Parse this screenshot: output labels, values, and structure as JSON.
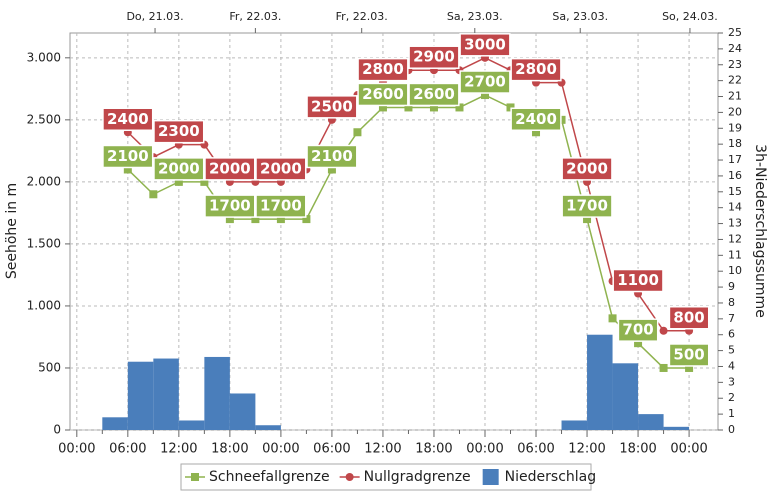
{
  "chart_data": {
    "type": "line",
    "ylabel": "Seehöhe in m",
    "y2label": "3h-Niederschlagssumme",
    "x": [
      6,
      9,
      12,
      15,
      18,
      21,
      24,
      27,
      30,
      33,
      36,
      39,
      42,
      45,
      48,
      51,
      54,
      57,
      60,
      63,
      66,
      69,
      72
    ],
    "series": [
      {
        "name": "Schneefallgrenze",
        "color": "#8fb34f",
        "marker": "square",
        "values": [
          2100,
          1900,
          2000,
          2000,
          1700,
          1700,
          1700,
          1700,
          2100,
          2400,
          2600,
          2600,
          2600,
          2600,
          2700,
          2600,
          2400,
          2500,
          1700,
          900,
          700,
          500,
          500
        ],
        "value_labels": [
          "2100",
          null,
          "2000",
          null,
          "1700",
          null,
          "1700",
          null,
          "2100",
          null,
          "2600",
          null,
          "2600",
          null,
          "2700",
          null,
          "2400",
          null,
          "1700",
          null,
          "700",
          null,
          "500"
        ]
      },
      {
        "name": "Nullgradgrenze",
        "color": "#c0474a",
        "marker": "circle",
        "values": [
          2400,
          2200,
          2300,
          2300,
          2000,
          2000,
          2000,
          2100,
          2500,
          2700,
          2800,
          2900,
          2900,
          2900,
          3000,
          2900,
          2800,
          2800,
          2000,
          1200,
          1100,
          800,
          800
        ],
        "value_labels": [
          "2400",
          null,
          "2300",
          null,
          "2000",
          null,
          "2000",
          null,
          "2500",
          null,
          "2800",
          null,
          "2900",
          null,
          "3000",
          null,
          "2800",
          null,
          "2000",
          null,
          "1100",
          null,
          "800"
        ]
      },
      {
        "name": "Niederschlag",
        "color": "#4a7ebb",
        "type": "bar",
        "axis": "y2",
        "x": [
          3,
          6,
          9,
          12,
          15,
          18,
          21,
          57,
          60,
          63,
          66,
          69
        ],
        "values": [
          0.8,
          4.3,
          4.5,
          0.6,
          4.6,
          2.3,
          0.3,
          0.6,
          6.0,
          4.2,
          1.0,
          0.2
        ]
      }
    ],
    "xlim": [
      -0.8,
      75.4
    ],
    "xticks": [
      {
        "value": 0,
        "label": "00:00"
      },
      {
        "value": 6,
        "label": "06:00"
      },
      {
        "value": 12,
        "label": "12:00"
      },
      {
        "value": 18,
        "label": "18:00"
      },
      {
        "value": 24,
        "label": "00:00"
      },
      {
        "value": 30,
        "label": "06:00"
      },
      {
        "value": 36,
        "label": "12:00"
      },
      {
        "value": 42,
        "label": "18:00"
      },
      {
        "value": 48,
        "label": "00:00"
      },
      {
        "value": 54,
        "label": "06:00"
      },
      {
        "value": 60,
        "label": "12:00"
      },
      {
        "value": 66,
        "label": "18:00"
      },
      {
        "value": 72,
        "label": "00:00"
      }
    ],
    "x2ticks": [
      {
        "value": 9.2,
        "label": "Do, 21.03."
      },
      {
        "value": 21,
        "label": "Fr, 22.03."
      },
      {
        "value": 33.5,
        "label": "Fr, 22.03."
      },
      {
        "value": 46.8,
        "label": "Sa, 23.03."
      },
      {
        "value": 59.2,
        "label": "Sa, 23.03."
      },
      {
        "value": 72.1,
        "label": "So, 24.03."
      }
    ],
    "ylim": [
      0,
      3200
    ],
    "yticks": [
      0,
      {
        "value": 500,
        "label": "500"
      },
      {
        "value": 1000,
        "label": "1.000"
      },
      {
        "value": 1500,
        "label": "1.500"
      },
      {
        "value": 2000,
        "label": "2.000"
      },
      {
        "value": 2500,
        "label": "2.500"
      },
      {
        "value": 3000,
        "label": "3.000"
      }
    ],
    "y2lim": [
      0,
      25
    ],
    "y2ticks": [
      0,
      1,
      2,
      3,
      4,
      5,
      6,
      7,
      8,
      9,
      10,
      11,
      12,
      13,
      14,
      15,
      16,
      17,
      18,
      19,
      20,
      21,
      22,
      23,
      24,
      25
    ],
    "grid": true,
    "legend": "bottom"
  }
}
